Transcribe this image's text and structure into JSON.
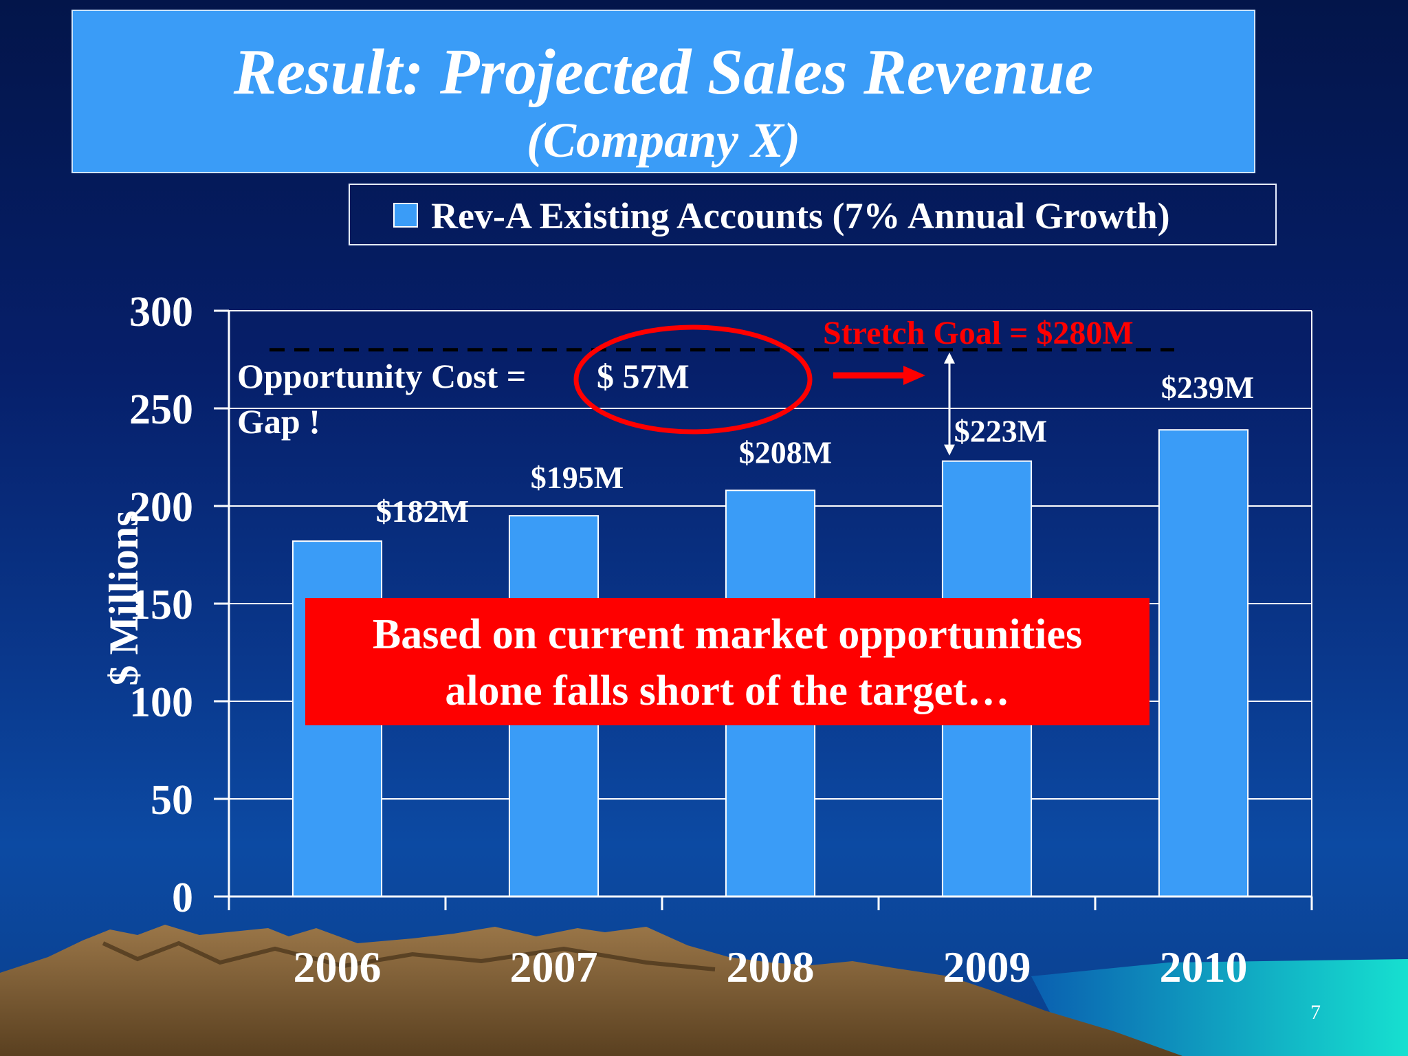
{
  "slide": {
    "title": "Result: Projected Sales Revenue",
    "subtitle": "(Company X)",
    "page_number": "7"
  },
  "legend": {
    "label": "Rev-A Existing Accounts (7% Annual Growth)",
    "color": "#3a9cf7"
  },
  "annotations": {
    "stretch_goal": "Stretch Goal = $280M",
    "opportunity_prefix": "Opportunity Cost =",
    "opportunity_value": "$ 57M",
    "gap": "Gap !",
    "callout_line1": "Based on current market opportunities",
    "callout_line2": "alone falls short of the target…"
  },
  "colors": {
    "bar": "#3a9cf7",
    "accent_red": "#ff0000",
    "title_box": "#3a9cf7",
    "background_top": "#03154a",
    "background_bottom": "#0c4aa3"
  },
  "chart_data": {
    "type": "bar",
    "categories": [
      "2006",
      "2007",
      "2008",
      "2009",
      "2010"
    ],
    "series": [
      {
        "name": "Rev-A Existing Accounts (7% Annual Growth)",
        "values": [
          182,
          195,
          208,
          223,
          239
        ]
      }
    ],
    "data_labels": [
      "$182M",
      "$195M",
      "$208M",
      "$223M",
      "$239M"
    ],
    "ylabel": "$ Millions",
    "ylim": [
      0,
      300
    ],
    "yticks": [
      0,
      50,
      100,
      150,
      200,
      250,
      300
    ],
    "grid": true,
    "legend_position": "top",
    "reference_lines": [
      {
        "label": "Stretch Goal = $280M",
        "value": 280,
        "style": "dashed"
      }
    ]
  }
}
